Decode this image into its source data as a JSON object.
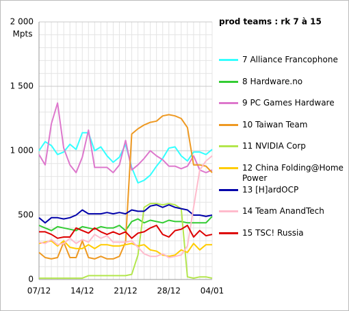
{
  "chart_data": {
    "type": "line",
    "title": "prod teams : rk 7 à 15",
    "y_label": "Mpts",
    "categories": [
      "07/12",
      null,
      null,
      null,
      null,
      null,
      null,
      "14/12",
      null,
      null,
      null,
      null,
      null,
      null,
      "21/12",
      null,
      null,
      null,
      null,
      null,
      null,
      "28/12",
      null,
      null,
      null,
      null,
      null,
      null,
      "04/01"
    ],
    "ylim": [
      0,
      2000
    ],
    "yticks": [
      0,
      500,
      {
        "value": 1000,
        "label": "1 000"
      },
      {
        "value": 1500,
        "label": "1 500"
      },
      {
        "value": 2000,
        "label": "2 000"
      }
    ],
    "yminorticks": [
      100,
      200,
      300,
      400,
      600,
      700,
      800,
      900,
      1100,
      1200,
      1300,
      1400,
      1600,
      1700,
      1800,
      1900
    ],
    "grid": true,
    "legend": "right",
    "series": [
      {
        "name": "7 Alliance Francophone",
        "color": "#33ffff",
        "values": [
          1000,
          1070,
          1040,
          970,
          990,
          1050,
          1010,
          1140,
          1140,
          1000,
          1030,
          960,
          910,
          950,
          1050,
          870,
          750,
          770,
          810,
          880,
          940,
          1020,
          1030,
          960,
          920,
          990,
          990,
          970,
          1010
        ]
      },
      {
        "name": "8 Hardware.no",
        "color": "#33cc33",
        "values": [
          420,
          400,
          380,
          410,
          400,
          390,
          380,
          410,
          400,
          390,
          410,
          400,
          400,
          420,
          380,
          450,
          470,
          440,
          460,
          450,
          440,
          460,
          450,
          450,
          440,
          440,
          440,
          440,
          490
        ]
      },
      {
        "name": "9 PC Games Hardware",
        "color": "#dd77cc",
        "values": [
          970,
          890,
          1210,
          1370,
          1020,
          890,
          830,
          950,
          1160,
          870,
          870,
          870,
          830,
          890,
          1080,
          850,
          890,
          940,
          1000,
          960,
          930,
          880,
          880,
          860,
          880,
          960,
          850,
          830,
          850
        ]
      },
      {
        "name": "10 Taiwan Team",
        "color": "#ee9922",
        "values": [
          210,
          170,
          160,
          170,
          290,
          170,
          170,
          300,
          170,
          160,
          180,
          160,
          160,
          180,
          290,
          1130,
          1170,
          1200,
          1220,
          1230,
          1270,
          1280,
          1270,
          1250,
          1180,
          890,
          890,
          880,
          830
        ]
      },
      {
        "name": "11 NVIDIA Corp",
        "color": "#b3e64d",
        "values": [
          10,
          10,
          10,
          10,
          10,
          10,
          10,
          10,
          30,
          30,
          30,
          30,
          30,
          30,
          30,
          40,
          190,
          560,
          590,
          590,
          580,
          590,
          580,
          550,
          20,
          10,
          20,
          20,
          10
        ]
      },
      {
        "name": "12 China Folding@Home Power",
        "color": "#ffcc00",
        "values": [
          280,
          290,
          300,
          260,
          300,
          250,
          240,
          240,
          270,
          240,
          270,
          270,
          260,
          260,
          270,
          280,
          260,
          270,
          230,
          220,
          190,
          180,
          190,
          230,
          210,
          280,
          230,
          270,
          270
        ]
      },
      {
        "name": "13 [H]ardOCP",
        "color": "#0000aa",
        "values": [
          480,
          440,
          480,
          480,
          470,
          480,
          500,
          540,
          510,
          510,
          510,
          520,
          510,
          520,
          510,
          540,
          530,
          530,
          570,
          580,
          560,
          580,
          560,
          550,
          540,
          500,
          500,
          490,
          500
        ]
      },
      {
        "name": "14 Team AnandTech",
        "color": "#ffbbcc",
        "values": [
          290,
          280,
          310,
          270,
          280,
          320,
          280,
          310,
          290,
          350,
          320,
          340,
          290,
          290,
          290,
          300,
          250,
          200,
          180,
          180,
          200,
          170,
          180,
          190,
          260,
          560,
          850,
          920,
          960
        ]
      },
      {
        "name": "15 TSC! Russia",
        "color": "#dd0000",
        "values": [
          370,
          370,
          350,
          320,
          330,
          330,
          400,
          380,
          360,
          400,
          370,
          350,
          370,
          350,
          370,
          320,
          360,
          370,
          400,
          420,
          350,
          330,
          380,
          390,
          420,
          330,
          380,
          340,
          350
        ]
      }
    ]
  }
}
